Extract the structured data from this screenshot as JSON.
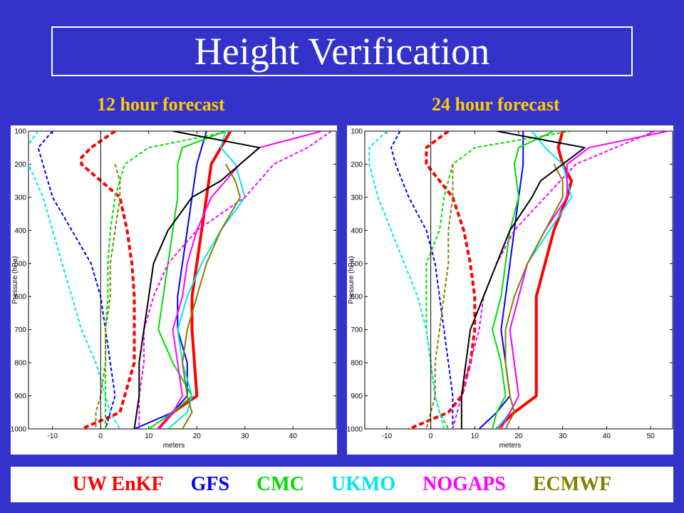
{
  "title": "Height Verification",
  "legend": [
    {
      "name": "UW EnKF",
      "color": "#ff0000"
    },
    {
      "name": "GFS",
      "color": "#0000ff"
    },
    {
      "name": "CMC",
      "color": "#00dd00"
    },
    {
      "name": "UKMO",
      "color": "#00e5ee"
    },
    {
      "name": "NOGAPS",
      "color": "#ff00ff"
    },
    {
      "name": "ECMWF",
      "color": "#808000"
    }
  ],
  "chart_data": [
    {
      "type": "line",
      "title": "12 hour forecast",
      "xlabel": "meters",
      "ylabel": "Pressure (hPa)",
      "xlim": [
        -15,
        49
      ],
      "ylim": [
        1000,
        100
      ],
      "xticks": [
        -10,
        0,
        10,
        20,
        30,
        40
      ],
      "yticks": [
        100,
        200,
        300,
        400,
        500,
        600,
        700,
        800,
        900,
        1000
      ],
      "series": [
        {
          "name": "UW EnKF",
          "style": "dashed",
          "color": "#ff0000",
          "width": 4,
          "x": [
            3,
            -2,
            -4,
            -4,
            0,
            4,
            5.5,
            6.5,
            7,
            7,
            7,
            5,
            4,
            -4
          ],
          "y": [
            100,
            150,
            180,
            200,
            250,
            300,
            400,
            500,
            600,
            700,
            800,
            900,
            950,
            1000
          ]
        },
        {
          "name": "UW EnKF",
          "style": "solid",
          "color": "#ff0000",
          "width": 4,
          "x": [
            27,
            25,
            23,
            22,
            21,
            20,
            19,
            19,
            20,
            15,
            12
          ],
          "y": [
            100,
            150,
            200,
            300,
            400,
            500,
            600,
            700,
            900,
            950,
            1000
          ]
        },
        {
          "name": "GFS",
          "style": "dashed",
          "color": "#0000ff",
          "width": 2,
          "x": [
            -10,
            -13,
            -12,
            -10,
            -6,
            -2,
            0,
            1,
            2,
            3,
            2,
            1
          ],
          "y": [
            100,
            150,
            200,
            300,
            400,
            500,
            600,
            700,
            800,
            900,
            950,
            1000
          ]
        },
        {
          "name": "GFS",
          "style": "solid",
          "color": "#0000ff",
          "width": 2,
          "x": [
            22,
            21,
            20,
            19,
            18,
            17,
            16,
            16,
            18,
            18,
            15,
            7
          ],
          "y": [
            100,
            150,
            200,
            300,
            400,
            500,
            600,
            700,
            800,
            900,
            950,
            1000
          ]
        },
        {
          "name": "CMC",
          "style": "dashed",
          "color": "#00dd00",
          "width": 2,
          "x": [
            27,
            10,
            5,
            3,
            2,
            1.5,
            1.5,
            1,
            1,
            1,
            1,
            1
          ],
          "y": [
            100,
            150,
            200,
            300,
            400,
            500,
            600,
            700,
            800,
            900,
            950,
            1000
          ]
        },
        {
          "name": "CMC",
          "style": "solid",
          "color": "#00dd00",
          "width": 2,
          "x": [
            26,
            17,
            16,
            16,
            15,
            14,
            13,
            12,
            15,
            19,
            15,
            10
          ],
          "y": [
            100,
            150,
            200,
            300,
            400,
            500,
            600,
            700,
            800,
            900,
            950,
            1000
          ]
        },
        {
          "name": "UKMO",
          "style": "dashed",
          "color": "#00e5ee",
          "width": 2,
          "x": [
            -13,
            -15.5,
            -15,
            -12,
            -10,
            -8,
            -6,
            -4,
            -1,
            1,
            2,
            4
          ],
          "y": [
            100,
            150,
            200,
            300,
            400,
            500,
            600,
            700,
            800,
            900,
            950,
            1000
          ]
        },
        {
          "name": "UKMO",
          "style": "solid",
          "color": "#00e5ee",
          "width": 2,
          "x": [
            26,
            25,
            28,
            30,
            25,
            21,
            18,
            16,
            17,
            19,
            18,
            14
          ],
          "y": [
            100,
            150,
            200,
            300,
            400,
            500,
            600,
            700,
            800,
            900,
            950,
            1000
          ]
        },
        {
          "name": "NOGAPS",
          "style": "dashed",
          "color": "#ff00ff",
          "width": 2,
          "x": [
            48,
            43,
            36,
            30,
            20,
            14,
            11,
            9,
            9,
            8,
            8,
            8
          ],
          "y": [
            100,
            150,
            200,
            300,
            400,
            500,
            600,
            700,
            800,
            900,
            950,
            1000
          ]
        },
        {
          "name": "NOGAPS",
          "style": "solid",
          "color": "#ff00ff",
          "width": 2,
          "x": [
            46,
            33,
            29,
            23,
            20,
            18,
            17,
            15,
            16,
            17,
            15,
            12
          ],
          "y": [
            100,
            150,
            200,
            300,
            400,
            500,
            600,
            700,
            800,
            900,
            950,
            1000
          ]
        },
        {
          "name": "ECMWF",
          "style": "dashed",
          "color": "#808000",
          "width": 2,
          "x": [
            3,
            4,
            4,
            3,
            2,
            2,
            1,
            1,
            0,
            -1,
            -1
          ],
          "y": [
            200,
            250,
            300,
            400,
            500,
            600,
            700,
            800,
            900,
            950,
            1000
          ]
        },
        {
          "name": "ECMWF",
          "style": "solid",
          "color": "#808000",
          "width": 2,
          "x": [
            26,
            28,
            29,
            25,
            22,
            20,
            18,
            17,
            18,
            19,
            17,
            14
          ],
          "y": [
            200,
            250,
            300,
            400,
            500,
            600,
            700,
            800,
            900,
            950,
            1000,
            1000
          ]
        },
        {
          "name": "Zero",
          "style": "solid",
          "color": "#000000",
          "width": 1,
          "x": [
            0,
            0
          ],
          "y": [
            100,
            1000
          ]
        },
        {
          "name": "Black",
          "style": "solid",
          "color": "#000000",
          "width": 2,
          "x": [
            15,
            33,
            25,
            19,
            14,
            11,
            10,
            9,
            8,
            8,
            7
          ],
          "y": [
            100,
            150,
            250,
            300,
            400,
            500,
            600,
            700,
            800,
            900,
            1000
          ]
        }
      ]
    },
    {
      "type": "line",
      "title": "24 hour forecast",
      "xlabel": "meters",
      "ylabel": "Pressure (hPa)",
      "xlim": [
        -15,
        55
      ],
      "ylim": [
        1000,
        100
      ],
      "xticks": [
        -10,
        0,
        10,
        20,
        30,
        40,
        50
      ],
      "yticks": [
        100,
        200,
        300,
        400,
        500,
        600,
        700,
        800,
        900,
        1000
      ],
      "series": [
        {
          "name": "UW EnKF",
          "style": "dashed",
          "color": "#ff0000",
          "width": 4,
          "x": [
            4,
            -1,
            -1,
            2,
            5,
            7.5,
            9,
            10,
            10,
            9,
            7,
            4,
            -5
          ],
          "y": [
            100,
            150,
            200,
            250,
            300,
            400,
            500,
            600,
            700,
            800,
            900,
            950,
            1000
          ]
        },
        {
          "name": "UW EnKF",
          "style": "solid",
          "color": "#ff0000",
          "width": 4,
          "x": [
            30,
            29,
            30,
            32,
            31,
            28,
            26,
            24,
            24,
            24,
            24,
            19,
            15
          ],
          "y": [
            100,
            150,
            200,
            250,
            300,
            400,
            500,
            600,
            700,
            800,
            900,
            950,
            1000
          ]
        },
        {
          "name": "GFS",
          "style": "dashed",
          "color": "#0000ff",
          "width": 2,
          "x": [
            -7,
            -9,
            -8,
            -5,
            -1,
            1,
            2,
            3,
            4,
            5,
            5,
            5
          ],
          "y": [
            100,
            150,
            200,
            300,
            400,
            500,
            600,
            700,
            800,
            900,
            950,
            1000
          ]
        },
        {
          "name": "GFS",
          "style": "solid",
          "color": "#0000ff",
          "width": 2,
          "x": [
            21,
            21,
            21,
            20,
            19,
            18,
            17,
            16,
            17,
            18,
            15,
            11
          ],
          "y": [
            100,
            150,
            200,
            300,
            400,
            500,
            600,
            700,
            800,
            900,
            950,
            1000
          ]
        },
        {
          "name": "CMC",
          "style": "dashed",
          "color": "#00dd00",
          "width": 2,
          "x": [
            32,
            10,
            5,
            3,
            2,
            -1,
            -1,
            -1,
            0,
            1,
            2,
            4
          ],
          "y": [
            100,
            150,
            200,
            300,
            400,
            500,
            600,
            700,
            800,
            900,
            950,
            1000
          ]
        },
        {
          "name": "CMC",
          "style": "solid",
          "color": "#00dd00",
          "width": 2,
          "x": [
            28,
            20,
            19,
            20,
            18,
            17,
            16,
            14,
            16,
            17,
            15,
            14
          ],
          "y": [
            100,
            150,
            200,
            300,
            400,
            500,
            600,
            700,
            800,
            900,
            950,
            1000
          ]
        },
        {
          "name": "UKMO",
          "style": "dashed",
          "color": "#00e5ee",
          "width": 2,
          "x": [
            -10,
            -14,
            -14,
            -12,
            -9,
            -6,
            -3,
            -1,
            0,
            1,
            2,
            3
          ],
          "y": [
            100,
            150,
            200,
            300,
            400,
            500,
            600,
            700,
            800,
            900,
            950,
            1000
          ]
        },
        {
          "name": "UKMO",
          "style": "solid",
          "color": "#00e5ee",
          "width": 2,
          "x": [
            23,
            26,
            30,
            32,
            27,
            22,
            20,
            18,
            19,
            20,
            18,
            15
          ],
          "y": [
            100,
            150,
            200,
            300,
            400,
            500,
            600,
            700,
            800,
            900,
            950,
            1000
          ]
        },
        {
          "name": "NOGAPS",
          "style": "dashed",
          "color": "#ff00ff",
          "width": 2,
          "x": [
            51,
            42,
            33,
            26,
            19,
            15,
            12,
            11,
            9,
            7,
            6,
            5
          ],
          "y": [
            100,
            150,
            200,
            300,
            400,
            500,
            600,
            700,
            800,
            900,
            950,
            1000
          ]
        },
        {
          "name": "NOGAPS",
          "style": "solid",
          "color": "#ff00ff",
          "width": 2,
          "x": [
            54,
            36,
            31,
            31,
            26,
            22,
            20,
            18,
            19,
            20,
            18,
            16
          ],
          "y": [
            100,
            150,
            200,
            300,
            400,
            500,
            600,
            700,
            800,
            900,
            950,
            1000
          ]
        },
        {
          "name": "ECMWF",
          "style": "dashed",
          "color": "#808000",
          "width": 2,
          "x": [
            5,
            5,
            4,
            4,
            3,
            2,
            1,
            1,
            0,
            -1
          ],
          "y": [
            200,
            300,
            400,
            500,
            600,
            700,
            800,
            900,
            950,
            1000
          ]
        },
        {
          "name": "ECMWF",
          "style": "solid",
          "color": "#808000",
          "width": 2,
          "x": [
            28,
            30,
            30,
            26,
            22,
            19,
            17,
            17,
            18,
            19,
            17,
            15
          ],
          "y": [
            200,
            250,
            300,
            400,
            500,
            600,
            700,
            800,
            900,
            950,
            1000,
            1000
          ]
        },
        {
          "name": "Zero",
          "style": "solid",
          "color": "#000000",
          "width": 1,
          "x": [
            0,
            0
          ],
          "y": [
            100,
            1000
          ]
        },
        {
          "name": "Black",
          "style": "solid",
          "color": "#000000",
          "width": 2,
          "x": [
            15,
            35,
            25,
            23,
            18,
            15,
            12,
            9,
            8,
            7,
            7,
            7
          ],
          "y": [
            100,
            150,
            250,
            300,
            400,
            500,
            600,
            700,
            800,
            900,
            950,
            1000
          ]
        }
      ]
    }
  ]
}
